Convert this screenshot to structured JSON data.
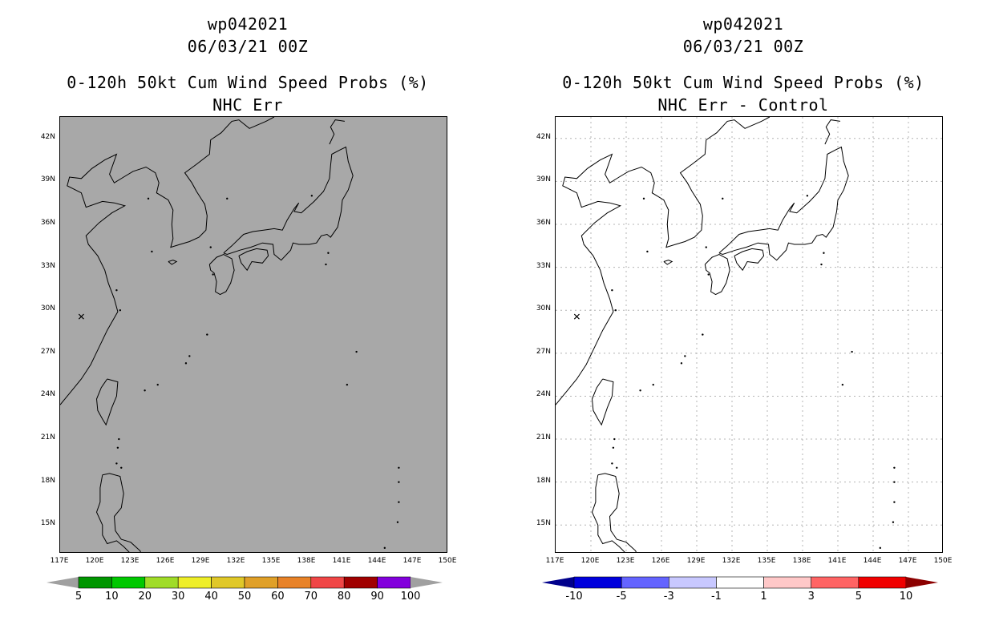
{
  "left_panel": {
    "storm_id": "wp042021",
    "datetime": "06/03/21 00Z",
    "product": "0-120h 50kt Cum Wind Speed Probs (%)",
    "subtitle": "NHC Err",
    "background_color": "#a8a8a8",
    "colorbar": {
      "labels": [
        "5",
        "10",
        "20",
        "30",
        "40",
        "50",
        "60",
        "70",
        "80",
        "90",
        "100"
      ],
      "colors": [
        "#009600",
        "#00c800",
        "#a0dc28",
        "#eeee28",
        "#e0c828",
        "#e0a028",
        "#e88228",
        "#f04646",
        "#a00000",
        "#8200dc"
      ],
      "end_low": "#a0a0a0",
      "end_high": "#a0a0a0"
    }
  },
  "right_panel": {
    "storm_id": "wp042021",
    "datetime": "06/03/21 00Z",
    "product": "0-120h 50kt Cum Wind Speed Probs (%)",
    "subtitle": "NHC Err - Control",
    "colorbar": {
      "labels": [
        "-10",
        "-5",
        "-3",
        "-1",
        "1",
        "3",
        "5",
        "10"
      ],
      "colors": [
        "#0000dc",
        "#6464ff",
        "#c8c8ff",
        "#ffffff",
        "#ffc8c8",
        "#ff6464",
        "#f00000"
      ],
      "end_low": "#00008c",
      "end_high": "#8c0000"
    }
  },
  "axes": {
    "lat_labels": [
      "42N",
      "39N",
      "36N",
      "33N",
      "30N",
      "27N",
      "24N",
      "21N",
      "18N",
      "15N"
    ],
    "lon_labels": [
      "117E",
      "120E",
      "123E",
      "126E",
      "129E",
      "132E",
      "135E",
      "138E",
      "141E",
      "144E",
      "147E",
      "150E"
    ],
    "lon_range": [
      117,
      150
    ],
    "lat_range": [
      13,
      43.5
    ]
  },
  "storm_marker_symbol": "✕"
}
